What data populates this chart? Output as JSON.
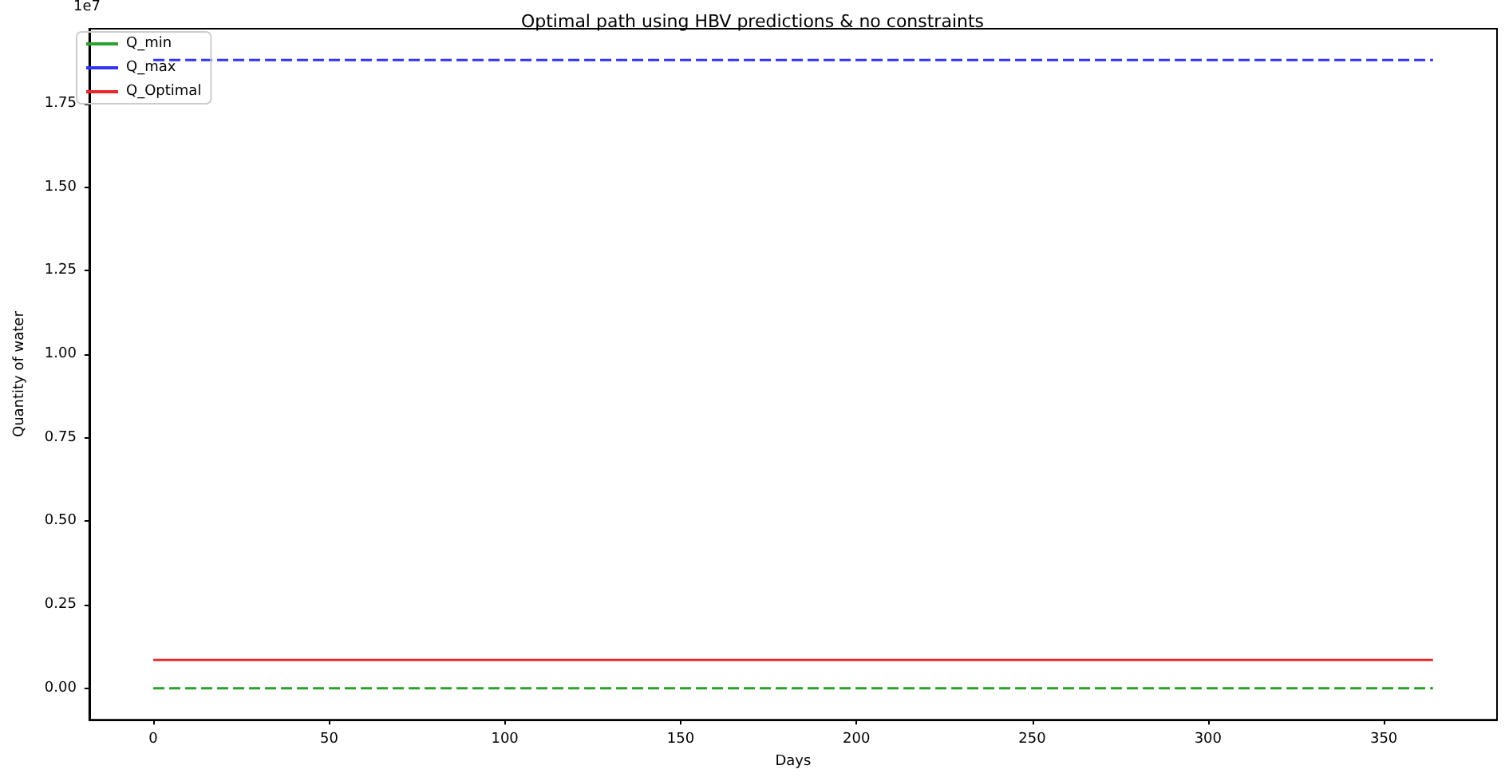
{
  "chart_data": {
    "type": "line",
    "title": "Optimal path using HBV predictions & no constraints",
    "xlabel": "Days",
    "ylabel": "Quantity of water",
    "annotations": [
      "1e7"
    ],
    "x": [
      0,
      364
    ],
    "series": [
      {
        "name": "Q_min",
        "color": "#2ca02c",
        "values": [
          0,
          0
        ],
        "line_style": "dashed"
      },
      {
        "name": "Q_max",
        "color": "#3333ff",
        "values": [
          1.88,
          1.88
        ],
        "line_style": "dashed"
      },
      {
        "name": "Q_Optimal",
        "color": "#e8262b",
        "values": [
          0.085,
          0.085
        ],
        "line_style": "solid"
      }
    ],
    "xlim": [
      -18.2,
      382.2
    ],
    "xticks": [
      0,
      50,
      100,
      150,
      200,
      250,
      300,
      350
    ],
    "ylim": [
      -0.094,
      1.974
    ],
    "yticks": [
      {
        "value": 0,
        "label": "0.00"
      },
      {
        "value": 0.25,
        "label": "0.25"
      },
      {
        "value": 0.5,
        "label": "0.50"
      },
      {
        "value": 0.75,
        "label": "0.75"
      },
      {
        "value": 1,
        "label": "1.00"
      },
      {
        "value": 1.25,
        "label": "1.25"
      },
      {
        "value": 1.5,
        "label": "1.50"
      },
      {
        "value": 1.75,
        "label": "1.75"
      }
    ],
    "grid": false,
    "legend": "top left",
    "marker": "none"
  }
}
